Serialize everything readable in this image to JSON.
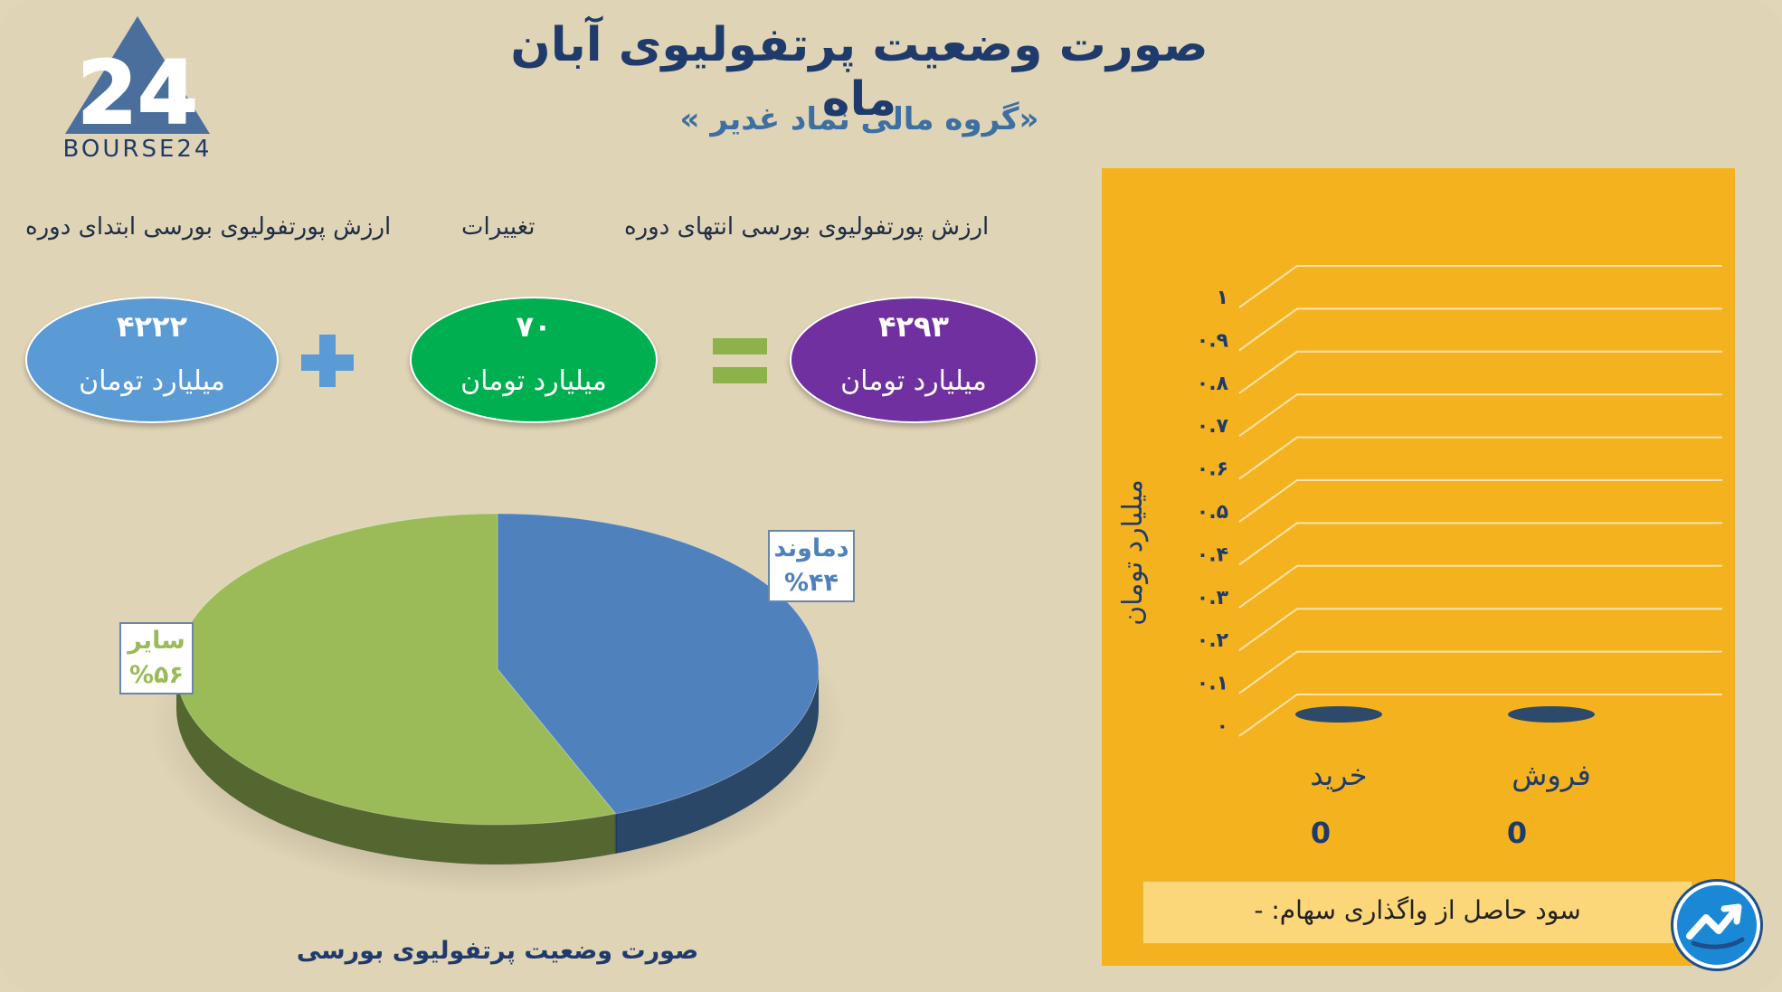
{
  "header": {
    "title": "صورت وضعیت پرتفولیوی آبان ماه",
    "subtitle": "«گروه مالی نماد غدیر »",
    "logo_text": "BOURSE24",
    "logo_mark": "24"
  },
  "equation": {
    "labels": {
      "start": "ارزش پورتفولیوی بورسی ابتدای دوره",
      "change": "تغییرات",
      "end": "ارزش پورتفولیوی بورسی انتهای دوره"
    },
    "start": {
      "value": "۴۲۲۲",
      "unit": "میلیارد تومان",
      "color": "#5b9bd5"
    },
    "change": {
      "value": "۷۰",
      "unit": "میلیارد تومان",
      "color": "#00b050"
    },
    "end": {
      "value": "۴۲۹۳",
      "unit": "میلیارد تومان",
      "color": "#7030a0"
    },
    "plus_color": "#5b9bd5",
    "equals_color": "#8bb34a"
  },
  "chart_data": [
    {
      "type": "pie",
      "title": "صورت وضعیت پرتفولیوی بورسی",
      "slices": [
        {
          "label": "دماوند",
          "value_label": "%۴۴",
          "value": 44,
          "color": "#4f81bd"
        },
        {
          "label": "سایر",
          "value_label": "%۵۶",
          "value": 56,
          "color": "#9bbb59"
        }
      ]
    },
    {
      "type": "bar",
      "categories": [
        "خرید",
        "فروش"
      ],
      "values": [
        0,
        0
      ],
      "value_labels": [
        "0",
        "0"
      ],
      "ylabel": "میلیارد تومان",
      "ylim": [
        0,
        1
      ],
      "yticks": [
        "۰",
        "۰.۱",
        "۰.۲",
        "۰.۳",
        "۰.۴",
        "۰.۵",
        "۰.۶",
        "۰.۷",
        "۰.۸",
        "۰.۹",
        "۱"
      ],
      "grid": true,
      "bar_color": "#2e4a6b",
      "background": "#f5b21f"
    }
  ],
  "footer": {
    "profit_text": "سود حاصل از واگذاری سهام: -"
  }
}
